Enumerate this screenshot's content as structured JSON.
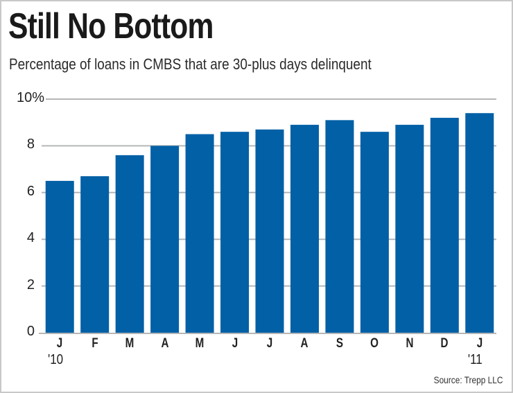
{
  "header": {
    "title": "Still No Bottom",
    "subtitle": "Percentage of loans in CMBS that are 30-plus days delinquent"
  },
  "footer": {
    "source": "Source: Trepp LLC"
  },
  "colors": {
    "bar": "#0160a6",
    "grid": "#b4b6b8",
    "text": "#1a1a1a",
    "border": "#c8c8c8"
  },
  "chart_data": {
    "type": "bar",
    "title": "Still No Bottom",
    "subtitle": "Percentage of loans in CMBS that are 30-plus days delinquent",
    "xlabel": "",
    "ylabel": "",
    "categories": [
      "J '10",
      "F",
      "M",
      "A",
      "M",
      "J",
      "J",
      "A",
      "S",
      "O",
      "N",
      "D",
      "J '11"
    ],
    "x_tick_labels": [
      "J",
      "F",
      "M",
      "A",
      "M",
      "J",
      "J",
      "A",
      "S",
      "O",
      "N",
      "D",
      "J"
    ],
    "year_labels": [
      {
        "index": 0,
        "label": "'10"
      },
      {
        "index": 12,
        "label": "'11"
      }
    ],
    "values": [
      6.5,
      6.7,
      7.6,
      8.0,
      8.5,
      8.6,
      8.7,
      8.9,
      9.1,
      8.6,
      8.9,
      9.2,
      9.4
    ],
    "ylim": [
      0,
      10
    ],
    "y_ticks": [
      0,
      2,
      4,
      6,
      8,
      10
    ],
    "y_tick_labels": [
      "0",
      "2",
      "4",
      "6",
      "8",
      "10%"
    ],
    "grid": true,
    "legend": "none",
    "source": "Source: Trepp LLC"
  }
}
